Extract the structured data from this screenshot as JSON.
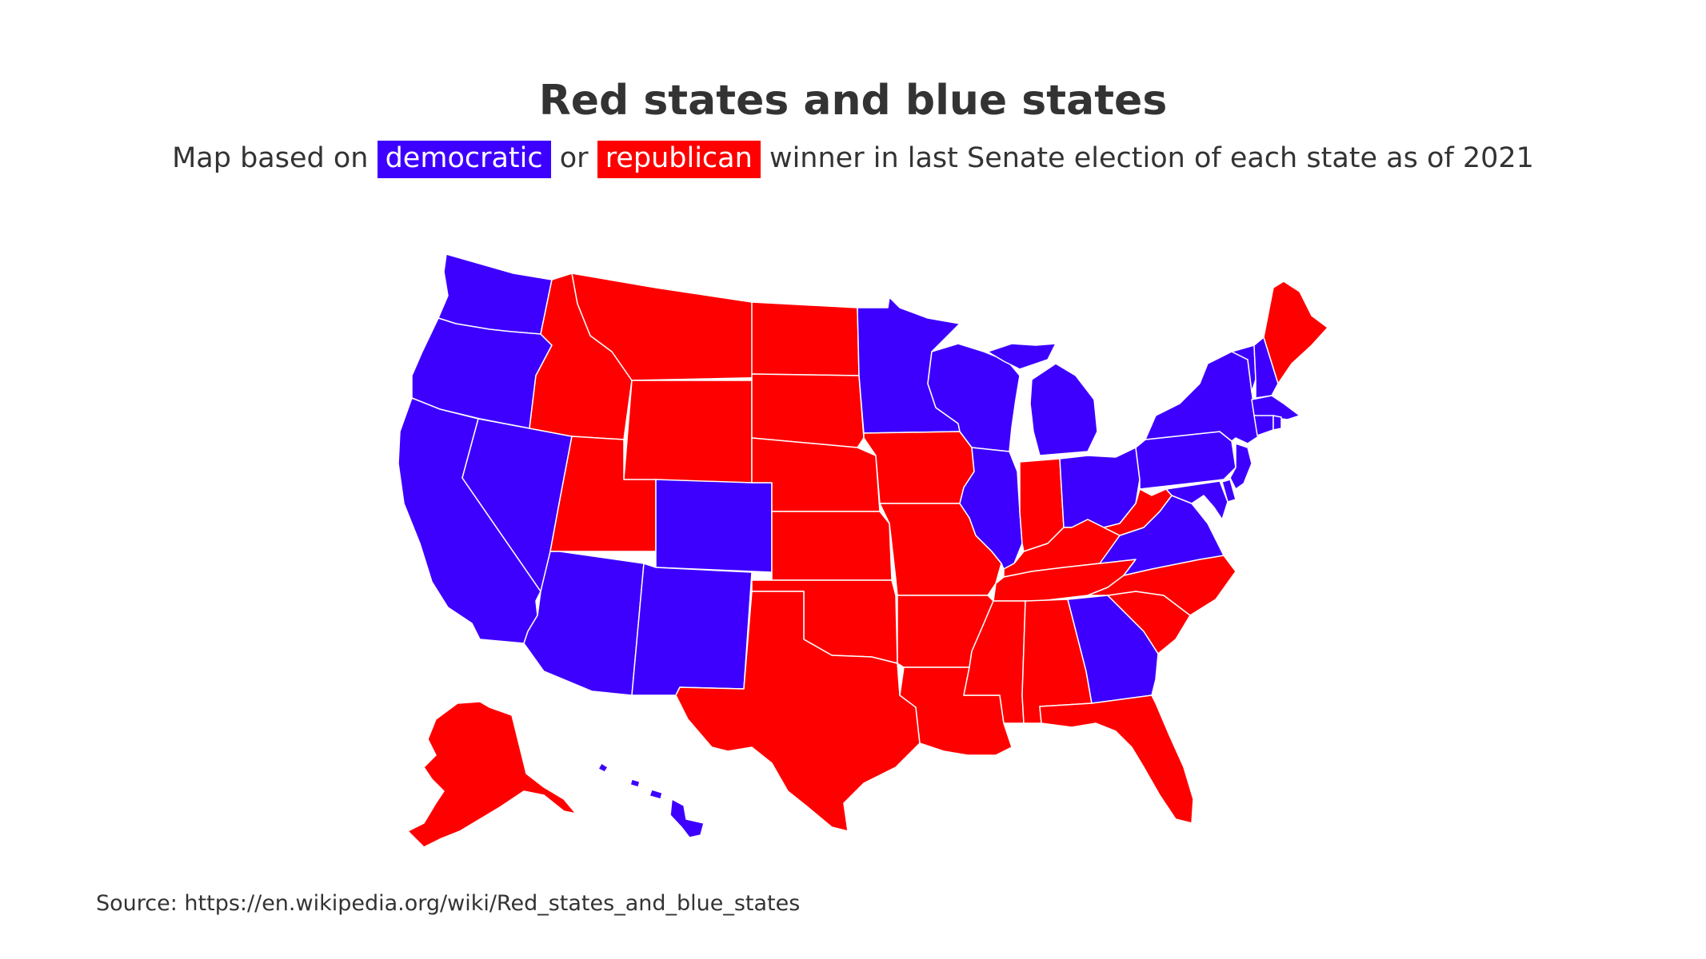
{
  "title": "Red states and blue states",
  "subtitle": {
    "before": "Map based on",
    "democratic": "democratic",
    "or": "or",
    "republican": "republican",
    "after": "winner in last Senate election of each state as of 2021"
  },
  "source": "Source: https://en.wikipedia.org/wiki/Red_states_and_blue_states",
  "colors": {
    "democratic": "#3d00ff",
    "republican": "#ff0000"
  },
  "states": {
    "WA": "democratic",
    "OR": "democratic",
    "CA": "democratic",
    "NV": "democratic",
    "ID": "republican",
    "MT": "republican",
    "WY": "republican",
    "UT": "republican",
    "CO": "democratic",
    "AZ": "democratic",
    "NM": "democratic",
    "ND": "republican",
    "SD": "republican",
    "NE": "republican",
    "KS": "republican",
    "OK": "republican",
    "TX": "republican",
    "MN": "democratic",
    "IA": "republican",
    "MO": "republican",
    "AR": "republican",
    "LA": "republican",
    "WI": "democratic",
    "IL": "democratic",
    "MI": "democratic",
    "IN": "republican",
    "OH": "democratic",
    "KY": "republican",
    "TN": "republican",
    "MS": "republican",
    "AL": "republican",
    "GA": "democratic",
    "FL": "republican",
    "SC": "republican",
    "NC": "republican",
    "VA": "democratic",
    "WV": "republican",
    "PA": "democratic",
    "NY": "democratic",
    "VT": "democratic",
    "NH": "democratic",
    "ME": "republican",
    "MA": "democratic",
    "CT": "democratic",
    "RI": "democratic",
    "NJ": "democratic",
    "DE": "democratic",
    "MD": "democratic",
    "AK": "republican",
    "HI": "democratic"
  }
}
